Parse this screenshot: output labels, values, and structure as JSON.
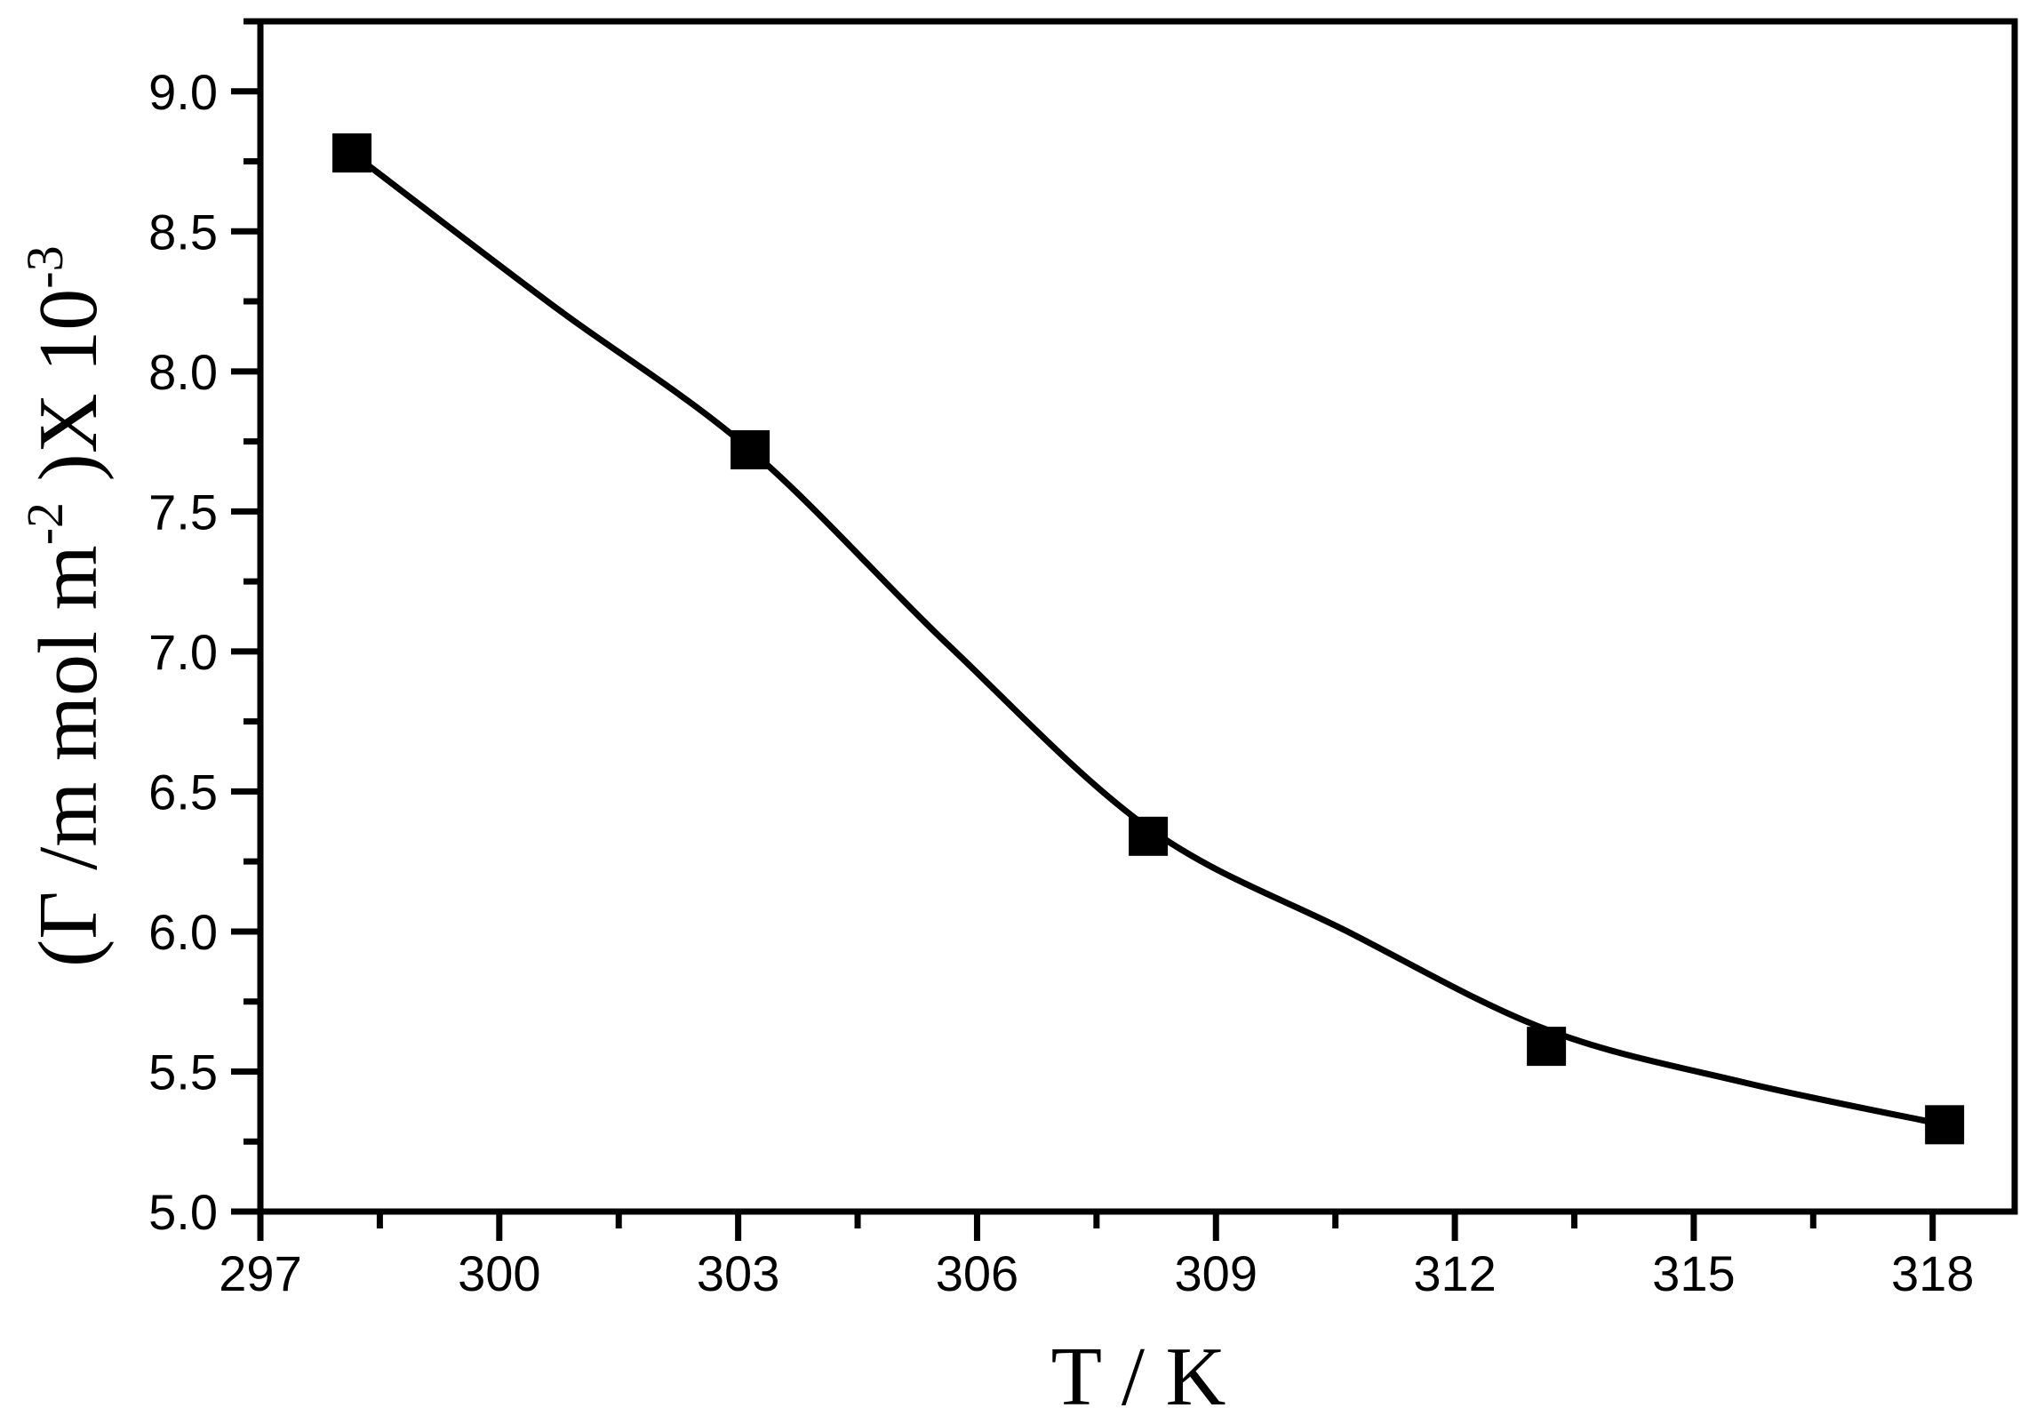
{
  "figure": {
    "background_color": "#ffffff",
    "ink_color": "#000000"
  },
  "chart_data": {
    "type": "scatter",
    "title": "",
    "xlabel": "T / K",
    "ylabel_plain": "(Γ /m mol m-2 )X 10-3",
    "ylabel_parts": [
      {
        "text": "(Γ /m mol m",
        "sup": false
      },
      {
        "text": "-2",
        "sup": true
      },
      {
        "text": " )X 10",
        "sup": false
      },
      {
        "text": "-3",
        "sup": true
      }
    ],
    "xlim": [
      297.0,
      319.03
    ],
    "ylim": [
      5.0,
      9.25
    ],
    "grid": false,
    "legend": false,
    "x_major_ticks": [
      297,
      300,
      303,
      306,
      309,
      312,
      315,
      318
    ],
    "x_major_tick_labels": [
      "297",
      "300",
      "303",
      "306",
      "309",
      "312",
      "315",
      "318"
    ],
    "x_minor_ticks": [
      298.5,
      301.5,
      304.5,
      307.5,
      310.5,
      313.5,
      316.5
    ],
    "y_major_ticks": [
      5.0,
      5.5,
      6.0,
      6.5,
      7.0,
      7.5,
      8.0,
      8.5,
      9.0
    ],
    "y_major_tick_labels": [
      "5.0",
      "5.5",
      "6.0",
      "6.5",
      "7.0",
      "7.5",
      "8.0",
      "8.5",
      "9.0"
    ],
    "y_minor_ticks": [
      5.25,
      5.75,
      6.25,
      6.75,
      7.25,
      7.75,
      8.25,
      8.75,
      9.25
    ],
    "series": [
      {
        "name": "adsorption-data",
        "marker": "filled-square",
        "marker_color": "#000000",
        "x": [
          298.15,
          303.15,
          308.15,
          313.15,
          318.15
        ],
        "y": [
          8.78,
          7.72,
          6.34,
          5.59,
          5.31
        ]
      }
    ],
    "fit_curve": {
      "name": "smooth-fit",
      "line_color": "#000000",
      "x": [
        298.15,
        300.65,
        303.15,
        305.65,
        308.15,
        310.65,
        313.15,
        315.65,
        318.15
      ],
      "y": [
        8.78,
        8.24,
        7.72,
        7.02,
        6.37,
        6.0,
        5.65,
        5.46,
        5.31
      ]
    }
  }
}
